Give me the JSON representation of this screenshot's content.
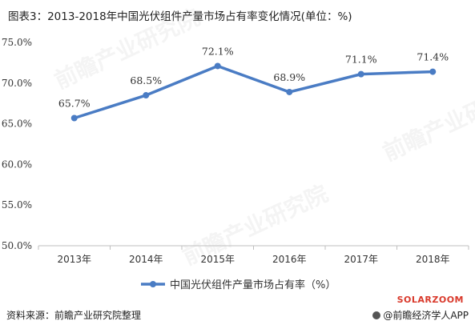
{
  "title": "图表3：2013-2018年中国光伏组件产量市场占有率变化情况(单位：%)",
  "source": "资料来源：前瞻产业研究院整理",
  "credit": "@前瞻经济学人APP",
  "brand": "SOLARZOOM",
  "watermarks": [
    "前瞻产业研究院",
    "前瞻产业研究院",
    "前瞻产业研究院"
  ],
  "colors": {
    "series": "#4a7cc4",
    "axis": "#bfbfbf",
    "text": "#333333",
    "brand": "#d9392b"
  },
  "chart_data": {
    "type": "line",
    "categories": [
      "2013年",
      "2014年",
      "2015年",
      "2016年",
      "2017年",
      "2018年"
    ],
    "series": [
      {
        "name": "中国光伏组件产量市场占有率（%）",
        "values": [
          65.7,
          68.5,
          72.1,
          68.9,
          71.1,
          71.4
        ]
      }
    ],
    "data_labels": [
      "65.7%",
      "68.5%",
      "72.1%",
      "68.9%",
      "71.1%",
      "71.4%"
    ],
    "yticks": [
      "50.0%",
      "55.0%",
      "60.0%",
      "65.0%",
      "70.0%",
      "75.0%"
    ],
    "ylim": [
      50,
      75
    ],
    "legend_position": "bottom",
    "grid": false
  }
}
